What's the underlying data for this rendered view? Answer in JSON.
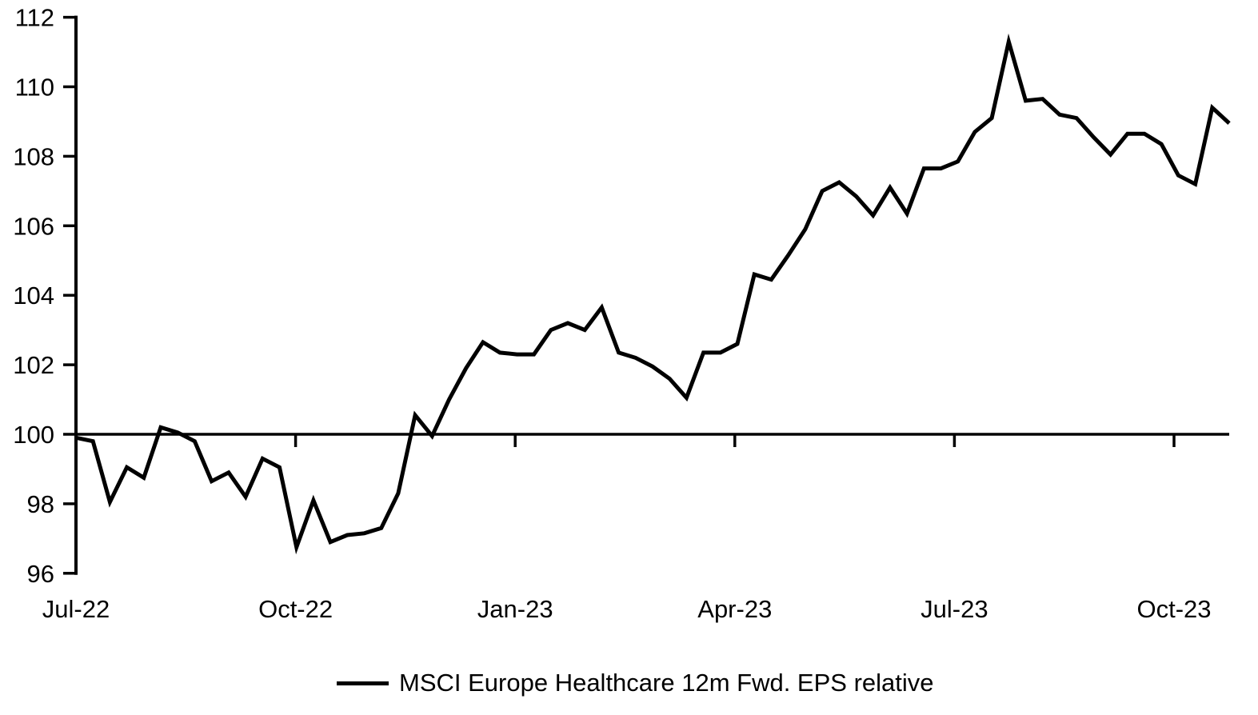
{
  "chart_data": {
    "type": "line",
    "title": "",
    "legend": "MSCI Europe Healthcare 12m Fwd. EPS relative",
    "x_tick_labels": [
      "Jul-22",
      "Oct-22",
      "Jan-23",
      "Apr-23",
      "Jul-23",
      "Oct-23"
    ],
    "y_ticks": [
      96,
      98,
      100,
      102,
      104,
      106,
      108,
      110,
      112
    ],
    "ylim": [
      96,
      112
    ],
    "reference_line": 100,
    "grid": "off",
    "legend_position": "bottom-center",
    "axis_color": "#000000",
    "background_color": "#ffffff",
    "series": [
      {
        "name": "MSCI Europe Healthcare 12m Fwd. EPS relative",
        "color": "#000000",
        "values": [
          99.9,
          99.8,
          98.05,
          99.05,
          98.75,
          100.2,
          100.05,
          99.8,
          98.65,
          98.9,
          98.2,
          99.3,
          99.05,
          96.75,
          98.1,
          96.9,
          97.1,
          97.15,
          97.3,
          98.3,
          100.55,
          99.95,
          101.0,
          101.9,
          102.65,
          102.35,
          102.3,
          102.3,
          103.0,
          103.2,
          103.0,
          103.65,
          102.35,
          102.2,
          101.95,
          101.6,
          101.05,
          102.35,
          102.35,
          102.6,
          104.6,
          104.45,
          105.15,
          105.9,
          107.0,
          107.25,
          106.85,
          106.3,
          107.1,
          106.35,
          107.65,
          107.65,
          107.85,
          108.7,
          109.1,
          111.3,
          109.6,
          109.65,
          109.2,
          109.1,
          108.55,
          108.05,
          108.65,
          108.65,
          108.35,
          107.45,
          107.2,
          109.4,
          108.95
        ]
      }
    ]
  }
}
